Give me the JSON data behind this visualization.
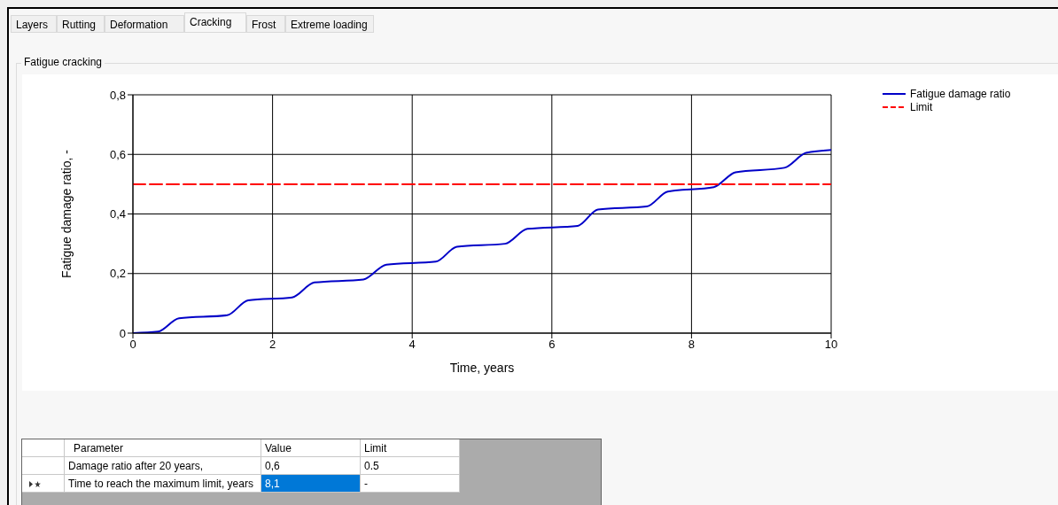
{
  "chart_data": {
    "type": "line",
    "xlabel": "Time, years",
    "ylabel": "Fatigue damage ratio, -",
    "xlim": [
      0,
      10
    ],
    "xticks": [
      0,
      2,
      4,
      6,
      8,
      10
    ],
    "ylim": [
      0,
      0.8
    ],
    "yticks": [
      0,
      {
        "value": 0.2,
        "label": "0,2"
      },
      {
        "value": 0.4,
        "label": "0,4"
      },
      {
        "value": 0.6,
        "label": "0,6"
      },
      {
        "value": 0.8,
        "label": "0,8"
      }
    ],
    "grid": true,
    "legend": "top right",
    "marker": "none",
    "series": [
      {
        "name": "Fatigue damage ratio",
        "color": "#0000c8",
        "line_style": "solid",
        "x": [
          0,
          0.36,
          0.66,
          1.35,
          1.65,
          2.28,
          2.6,
          3.3,
          3.63,
          4.34,
          4.64,
          5.33,
          5.65,
          6.37,
          6.66,
          7.36,
          7.66,
          8.32,
          8.63,
          9.33,
          9.64,
          10
        ],
        "values": [
          0,
          0.005,
          0.05,
          0.06,
          0.11,
          0.12,
          0.17,
          0.18,
          0.23,
          0.24,
          0.29,
          0.3,
          0.35,
          0.36,
          0.415,
          0.425,
          0.475,
          0.49,
          0.54,
          0.555,
          0.605,
          0.615
        ]
      },
      {
        "name": "Limit",
        "color": "#ff0000",
        "line_style": "dashed",
        "x": [
          0,
          10
        ],
        "values": [
          0.5,
          0.5
        ]
      }
    ],
    "annotations": [
      "Layers",
      "Rutting",
      "Deformation",
      "Cracking",
      "Frost",
      "Extreme loading",
      "Fatigue cracking",
      "Parameter",
      "Value",
      "Limit",
      "Damage ratio after 20 years,",
      "0,6",
      "0.5",
      "Time to reach the maximum limit, years",
      "8,1",
      "-"
    ]
  }
}
